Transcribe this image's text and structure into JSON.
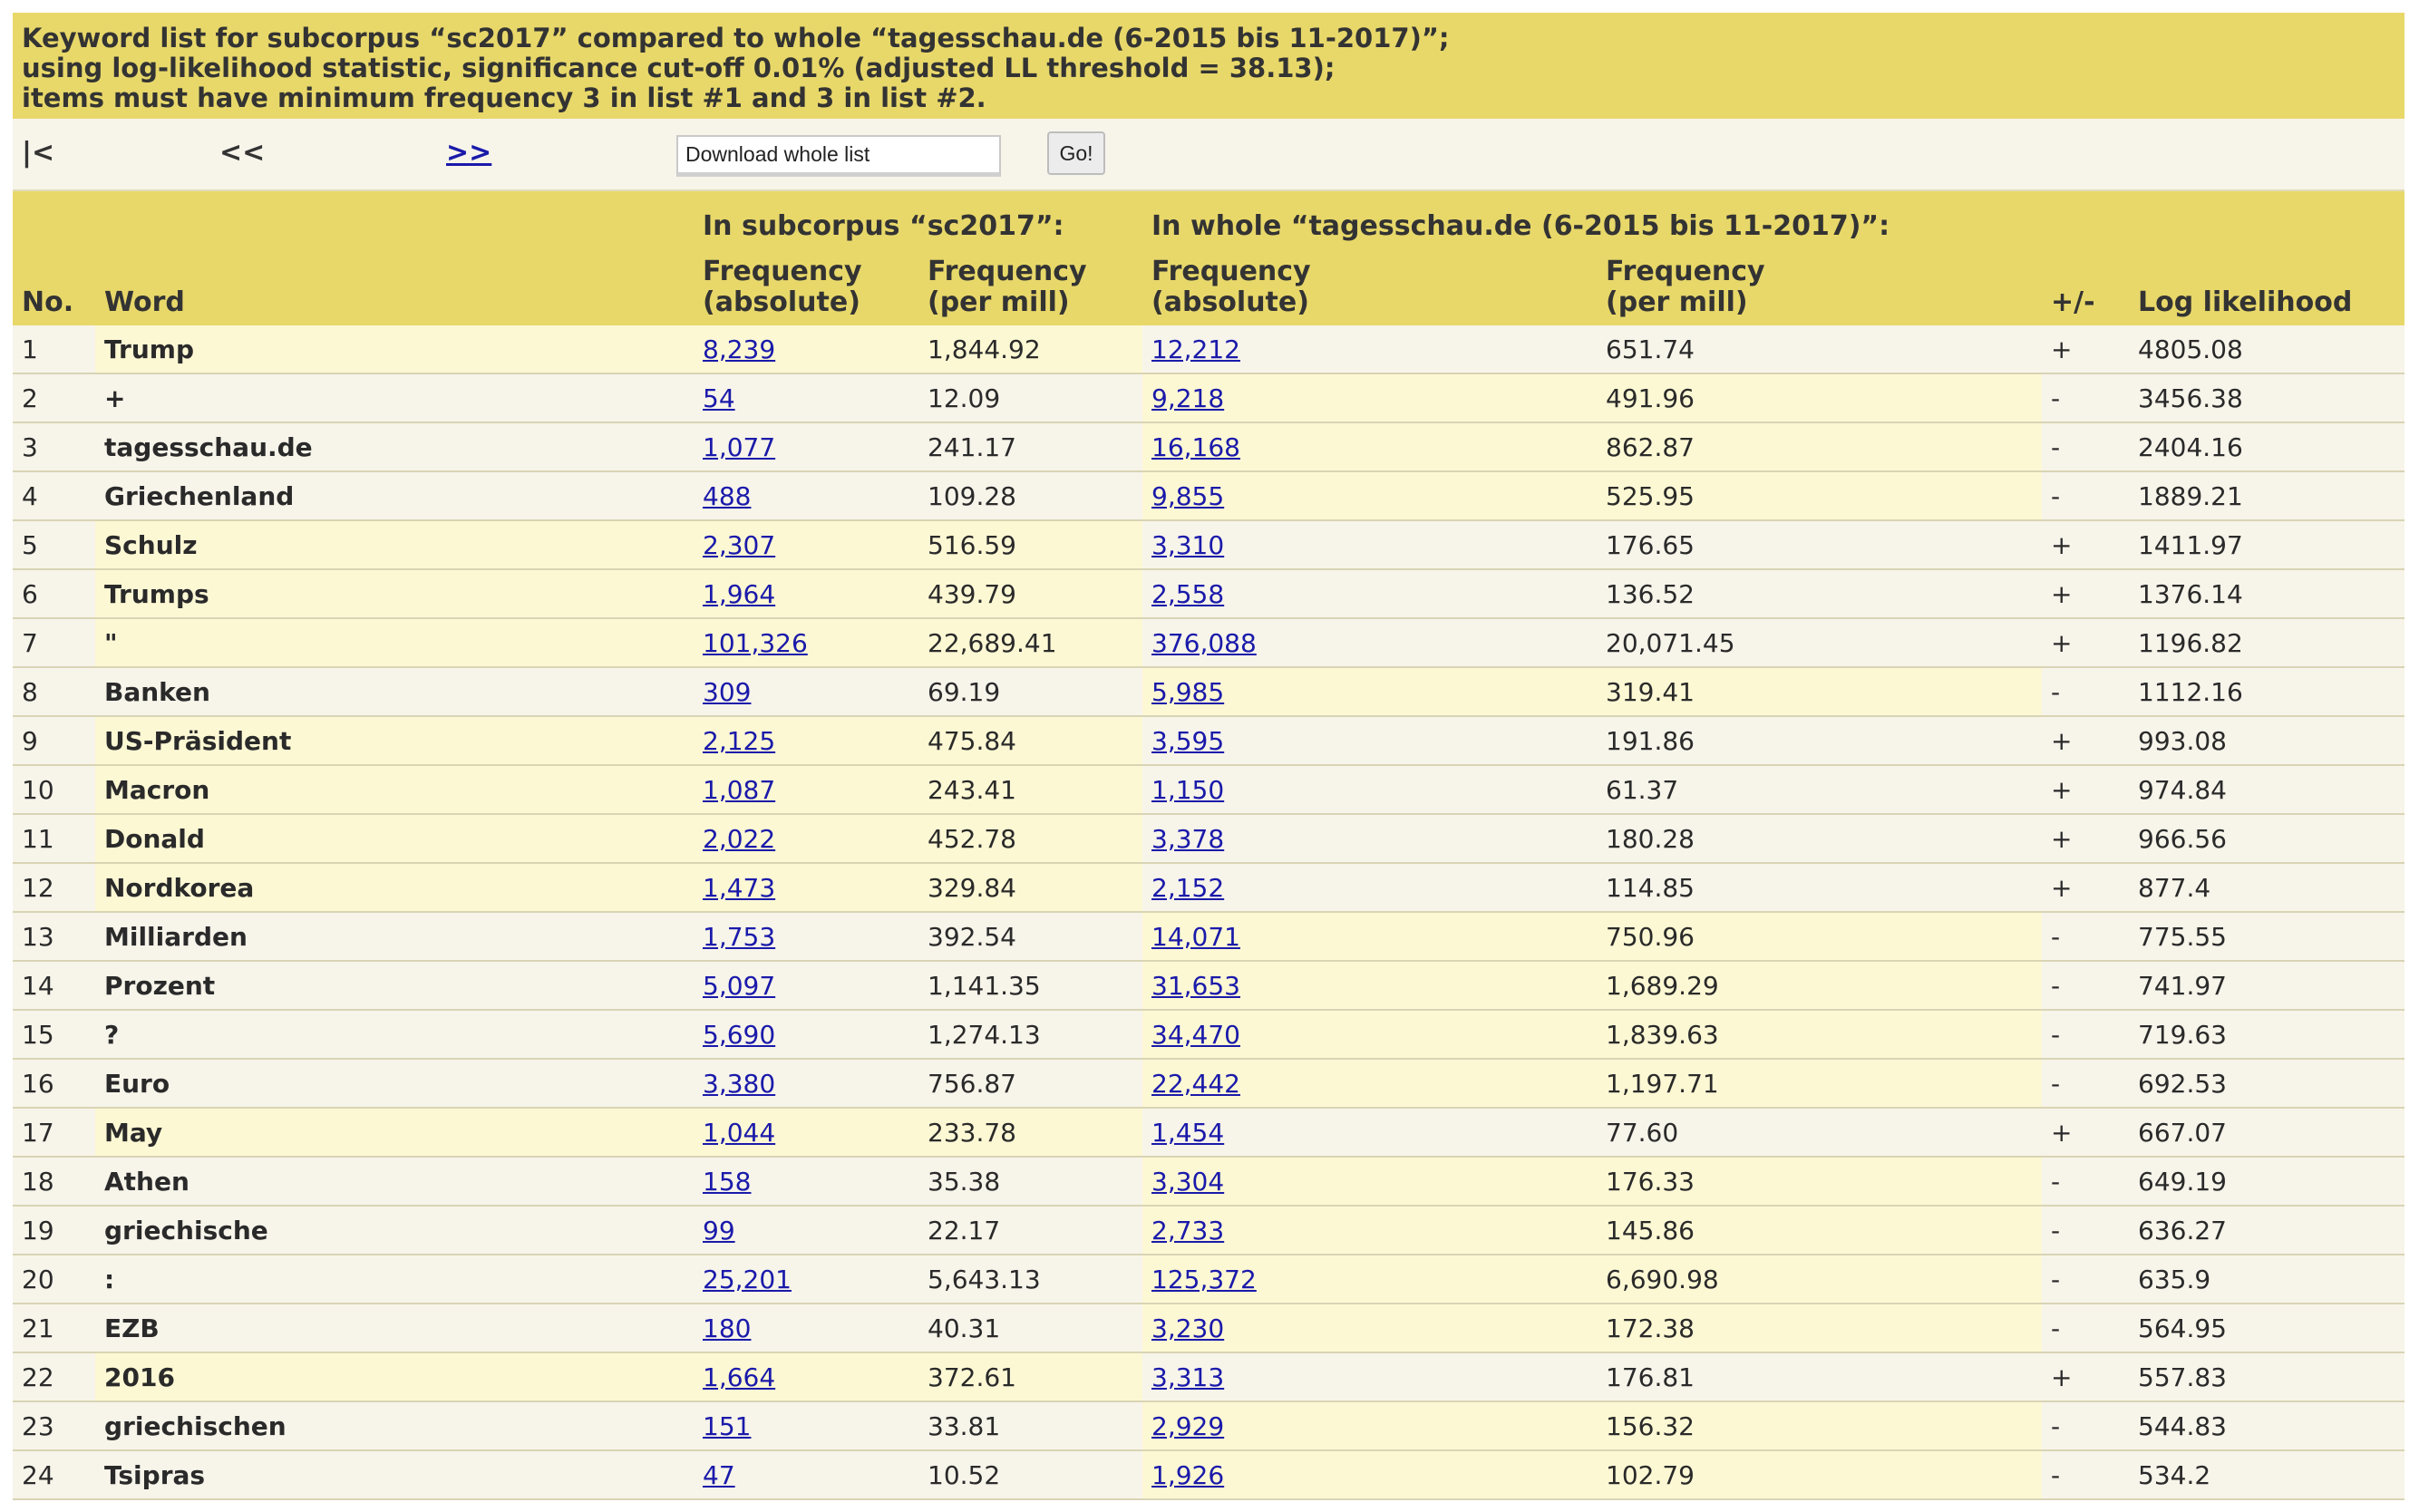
{
  "header": {
    "line1": "Keyword list for subcorpus “sc2017” compared to whole “tagesschau.de (6-2015 bis 11-2017)”;",
    "line2": "using log-likelihood statistic, significance cut-off 0.01% (adjusted LL threshold = 38.13);",
    "line3": "items must have minimum frequency 3 in list #1 and 3 in list #2."
  },
  "nav": {
    "first": "|<",
    "prev": "<<",
    "next": ">>",
    "download_label": "Download whole list",
    "go_label": "Go!"
  },
  "table": {
    "group_sub": "In subcorpus “sc2017”:",
    "group_whole": "In whole “tagesschau.de (6-2015 bis 11-2017)”:",
    "col_no": "No.",
    "col_word": "Word",
    "col_sub_abs": [
      "Frequency",
      "(absolute)"
    ],
    "col_sub_pm": [
      "Frequency",
      "(per mill)"
    ],
    "col_whole_abs": [
      "Frequency",
      "(absolute)"
    ],
    "col_whole_pm": [
      "Frequency",
      "(per mill)"
    ],
    "col_sign": "+/-",
    "col_ll": "Log likelihood",
    "rows": [
      {
        "no": "1",
        "word": "Trump",
        "sub_abs": "8,239",
        "sub_pm": "1,844.92",
        "whole_abs": "12,212",
        "whole_pm": "651.74",
        "sign": "+",
        "ll": "4805.08"
      },
      {
        "no": "2",
        "word": "+",
        "sub_abs": "54",
        "sub_pm": "12.09",
        "whole_abs": "9,218",
        "whole_pm": "491.96",
        "sign": "-",
        "ll": "3456.38"
      },
      {
        "no": "3",
        "word": "tagesschau.de",
        "sub_abs": "1,077",
        "sub_pm": "241.17",
        "whole_abs": "16,168",
        "whole_pm": "862.87",
        "sign": "-",
        "ll": "2404.16"
      },
      {
        "no": "4",
        "word": "Griechenland",
        "sub_abs": "488",
        "sub_pm": "109.28",
        "whole_abs": "9,855",
        "whole_pm": "525.95",
        "sign": "-",
        "ll": "1889.21"
      },
      {
        "no": "5",
        "word": "Schulz",
        "sub_abs": "2,307",
        "sub_pm": "516.59",
        "whole_abs": "3,310",
        "whole_pm": "176.65",
        "sign": "+",
        "ll": "1411.97"
      },
      {
        "no": "6",
        "word": "Trumps",
        "sub_abs": "1,964",
        "sub_pm": "439.79",
        "whole_abs": "2,558",
        "whole_pm": "136.52",
        "sign": "+",
        "ll": "1376.14"
      },
      {
        "no": "7",
        "word": "\"",
        "sub_abs": "101,326",
        "sub_pm": "22,689.41",
        "whole_abs": "376,088",
        "whole_pm": "20,071.45",
        "sign": "+",
        "ll": "1196.82"
      },
      {
        "no": "8",
        "word": "Banken",
        "sub_abs": "309",
        "sub_pm": "69.19",
        "whole_abs": "5,985",
        "whole_pm": "319.41",
        "sign": "-",
        "ll": "1112.16"
      },
      {
        "no": "9",
        "word": "US-Präsident",
        "sub_abs": "2,125",
        "sub_pm": "475.84",
        "whole_abs": "3,595",
        "whole_pm": "191.86",
        "sign": "+",
        "ll": "993.08"
      },
      {
        "no": "10",
        "word": "Macron",
        "sub_abs": "1,087",
        "sub_pm": "243.41",
        "whole_abs": "1,150",
        "whole_pm": "61.37",
        "sign": "+",
        "ll": "974.84"
      },
      {
        "no": "11",
        "word": "Donald",
        "sub_abs": "2,022",
        "sub_pm": "452.78",
        "whole_abs": "3,378",
        "whole_pm": "180.28",
        "sign": "+",
        "ll": "966.56"
      },
      {
        "no": "12",
        "word": "Nordkorea",
        "sub_abs": "1,473",
        "sub_pm": "329.84",
        "whole_abs": "2,152",
        "whole_pm": "114.85",
        "sign": "+",
        "ll": "877.4"
      },
      {
        "no": "13",
        "word": "Milliarden",
        "sub_abs": "1,753",
        "sub_pm": "392.54",
        "whole_abs": "14,071",
        "whole_pm": "750.96",
        "sign": "-",
        "ll": "775.55"
      },
      {
        "no": "14",
        "word": "Prozent",
        "sub_abs": "5,097",
        "sub_pm": "1,141.35",
        "whole_abs": "31,653",
        "whole_pm": "1,689.29",
        "sign": "-",
        "ll": "741.97"
      },
      {
        "no": "15",
        "word": "?",
        "sub_abs": "5,690",
        "sub_pm": "1,274.13",
        "whole_abs": "34,470",
        "whole_pm": "1,839.63",
        "sign": "-",
        "ll": "719.63"
      },
      {
        "no": "16",
        "word": "Euro",
        "sub_abs": "3,380",
        "sub_pm": "756.87",
        "whole_abs": "22,442",
        "whole_pm": "1,197.71",
        "sign": "-",
        "ll": "692.53"
      },
      {
        "no": "17",
        "word": "May",
        "sub_abs": "1,044",
        "sub_pm": "233.78",
        "whole_abs": "1,454",
        "whole_pm": "77.60",
        "sign": "+",
        "ll": "667.07"
      },
      {
        "no": "18",
        "word": "Athen",
        "sub_abs": "158",
        "sub_pm": "35.38",
        "whole_abs": "3,304",
        "whole_pm": "176.33",
        "sign": "-",
        "ll": "649.19"
      },
      {
        "no": "19",
        "word": "griechische",
        "sub_abs": "99",
        "sub_pm": "22.17",
        "whole_abs": "2,733",
        "whole_pm": "145.86",
        "sign": "-",
        "ll": "636.27"
      },
      {
        "no": "20",
        "word": ":",
        "sub_abs": "25,201",
        "sub_pm": "5,643.13",
        "whole_abs": "125,372",
        "whole_pm": "6,690.98",
        "sign": "-",
        "ll": "635.9"
      },
      {
        "no": "21",
        "word": "EZB",
        "sub_abs": "180",
        "sub_pm": "40.31",
        "whole_abs": "3,230",
        "whole_pm": "172.38",
        "sign": "-",
        "ll": "564.95"
      },
      {
        "no": "22",
        "word": "2016",
        "sub_abs": "1,664",
        "sub_pm": "372.61",
        "whole_abs": "3,313",
        "whole_pm": "176.81",
        "sign": "+",
        "ll": "557.83"
      },
      {
        "no": "23",
        "word": "griechischen",
        "sub_abs": "151",
        "sub_pm": "33.81",
        "whole_abs": "2,929",
        "whole_pm": "156.32",
        "sign": "-",
        "ll": "544.83"
      },
      {
        "no": "24",
        "word": "Tsipras",
        "sub_abs": "47",
        "sub_pm": "10.52",
        "whole_abs": "1,926",
        "whole_pm": "102.79",
        "sign": "-",
        "ll": "534.2"
      }
    ]
  }
}
